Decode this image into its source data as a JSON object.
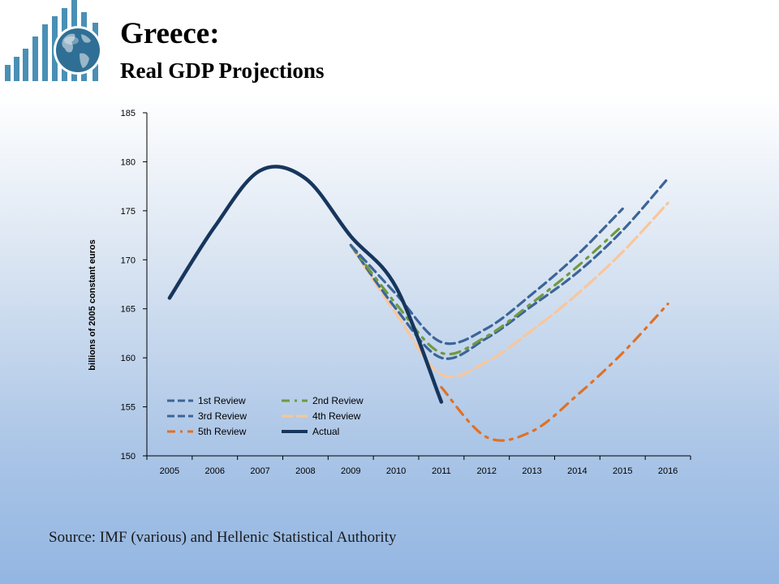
{
  "header": {
    "title": "Greece:",
    "subtitle": "Real GDP Projections"
  },
  "logo": {
    "icon": "globe-with-bars-logo",
    "bar_color": "#4a8fb5",
    "globe_color": "#2f6f95"
  },
  "source": "Source: IMF (various) and Hellenic Statistical Authority",
  "chart_data": {
    "type": "line",
    "xlabel": "",
    "ylabel": "billions  of 2005  constant euros",
    "ylim": [
      150,
      185
    ],
    "yticks": [
      150,
      155,
      160,
      165,
      170,
      175,
      180,
      185
    ],
    "xlim": [
      2004.5,
      2016.5
    ],
    "xticks": [
      2005,
      2006,
      2007,
      2008,
      2009,
      2010,
      2011,
      2012,
      2013,
      2014,
      2015,
      2016
    ],
    "grid": false,
    "legend_position": "lower-left",
    "series": [
      {
        "name": "1st Review",
        "color": "#3c6597",
        "style": "dash",
        "x": [
          2009,
          2010,
          2011,
          2012,
          2013,
          2014,
          2015
        ],
        "y": [
          171.5,
          166.5,
          161.6,
          163.0,
          166.5,
          170.5,
          175.2
        ]
      },
      {
        "name": "2nd Review",
        "color": "#6e9a3f",
        "style": "dash-dot",
        "x": [
          2009,
          2010,
          2011,
          2012,
          2013,
          2014,
          2015
        ],
        "y": [
          171.5,
          165.5,
          160.5,
          162.2,
          165.6,
          169.3,
          173.5
        ]
      },
      {
        "name": "3rd Review",
        "color": "#3c6597",
        "style": "dash",
        "x": [
          2009,
          2010,
          2011,
          2012,
          2013,
          2014,
          2015,
          2016
        ],
        "y": [
          171.5,
          165.0,
          160.0,
          162.0,
          165.3,
          168.7,
          173.0,
          178.3
        ]
      },
      {
        "name": "4th Review",
        "color": "#f9c69a",
        "style": "long-dash",
        "x": [
          2009,
          2010,
          2011,
          2012,
          2013,
          2014,
          2015,
          2016
        ],
        "y": [
          171.5,
          164.5,
          158.3,
          159.6,
          162.8,
          166.5,
          170.8,
          175.8
        ]
      },
      {
        "name": "5th Review",
        "color": "#e07126",
        "style": "dash-dot",
        "x": [
          2011,
          2012,
          2013,
          2014,
          2015,
          2016
        ],
        "y": [
          157.0,
          151.9,
          152.5,
          156.2,
          160.5,
          165.5
        ]
      },
      {
        "name": "Actual",
        "color": "#17365d",
        "style": "solid",
        "x": [
          2005,
          2006,
          2007,
          2008,
          2009,
          2010,
          2011
        ],
        "y": [
          166.1,
          173.4,
          179.1,
          178.3,
          172.4,
          167.2,
          155.5
        ]
      }
    ]
  }
}
